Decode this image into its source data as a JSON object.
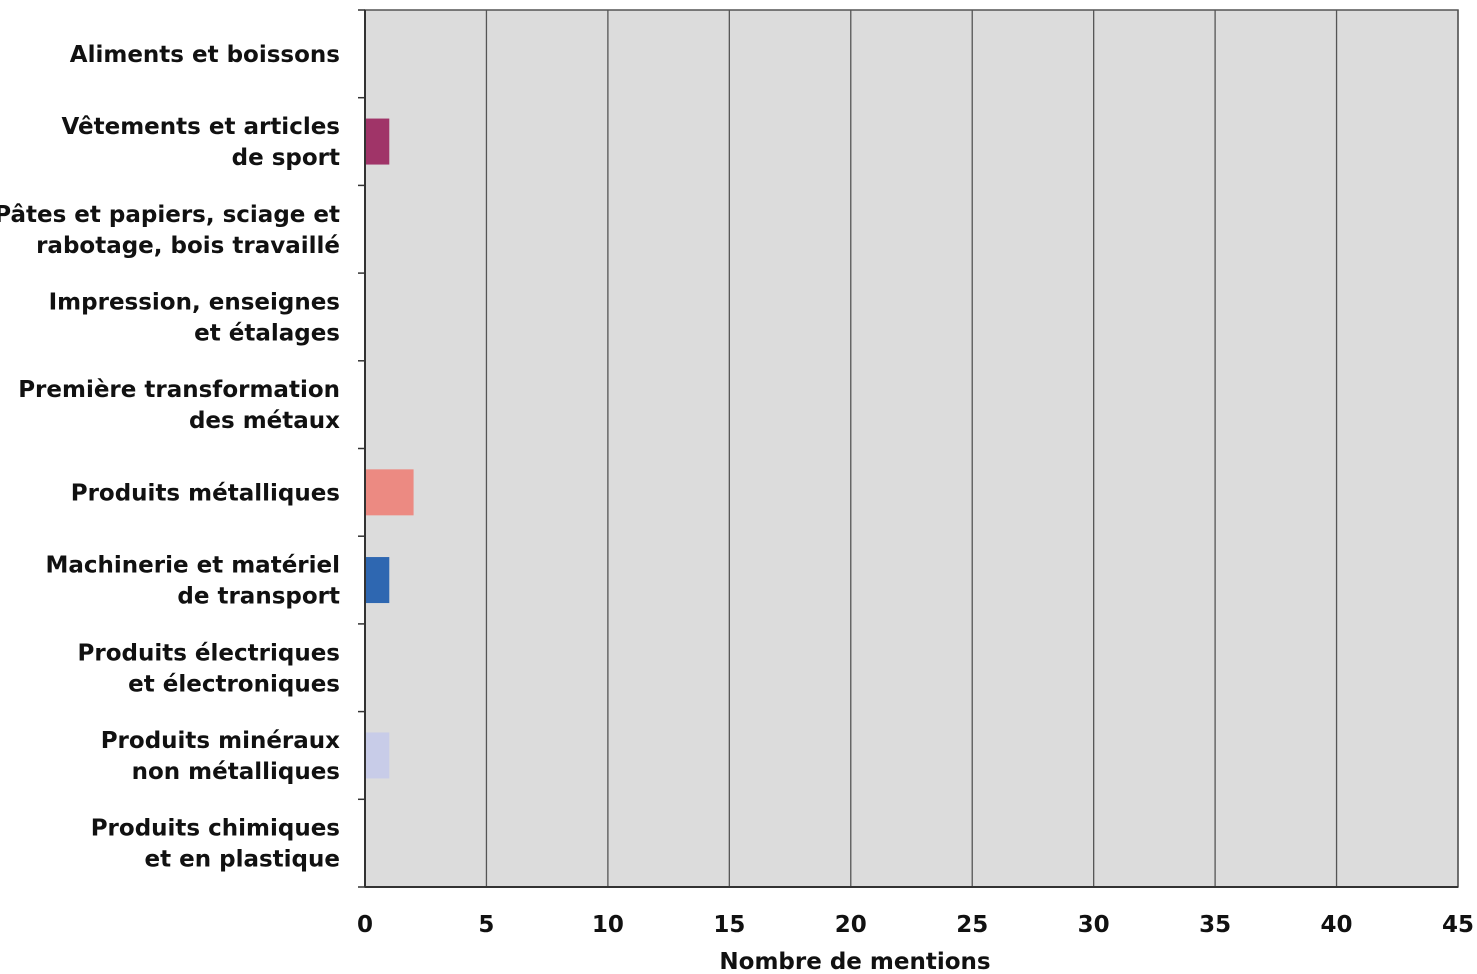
{
  "chart_data": {
    "type": "bar",
    "orientation": "horizontal",
    "categories": [
      [
        "Aliments et boissons"
      ],
      [
        "Vêtements et articles",
        "de sport"
      ],
      [
        "Pâtes et papiers, sciage et",
        "rabotage, bois travaillé"
      ],
      [
        "Impression, enseignes",
        "et étalages"
      ],
      [
        "Première transformation",
        "des métaux"
      ],
      [
        "Produits métalliques"
      ],
      [
        "Machinerie et matériel",
        "de transport"
      ],
      [
        "Produits électriques",
        "et électroniques"
      ],
      [
        "Produits minéraux",
        "non métalliques"
      ],
      [
        "Produits chimiques",
        "et en plastique"
      ]
    ],
    "values": [
      0,
      1,
      0,
      0,
      0,
      2,
      1,
      0,
      1,
      0
    ],
    "colors": [
      "#a03468",
      "#a03468",
      "#a03468",
      "#a03468",
      "#a03468",
      "#ec8a82",
      "#2e67b1",
      "#a03468",
      "#c8cce8",
      "#a03468"
    ],
    "xlabel": "Nombre de mentions",
    "ylabel": "",
    "xlim": [
      0,
      45
    ],
    "xticks": [
      0,
      5,
      10,
      15,
      20,
      25,
      30,
      35,
      40,
      45
    ],
    "grid": "vertical",
    "plot_background": "#dcdcdc",
    "grid_color": "#555555",
    "legend": "none"
  }
}
